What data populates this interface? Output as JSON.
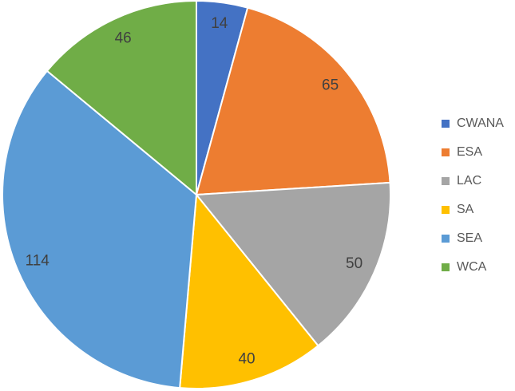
{
  "chart_data": {
    "type": "pie",
    "categories": [
      "CWANA",
      "ESA",
      "LAC",
      "SA",
      "SEA",
      "WCA"
    ],
    "values": [
      14,
      65,
      50,
      40,
      114,
      46
    ],
    "colors": [
      "#4472c4",
      "#ed7d31",
      "#a5a5a5",
      "#ffc000",
      "#5b9bd5",
      "#70ad47"
    ],
    "legend": "right"
  }
}
